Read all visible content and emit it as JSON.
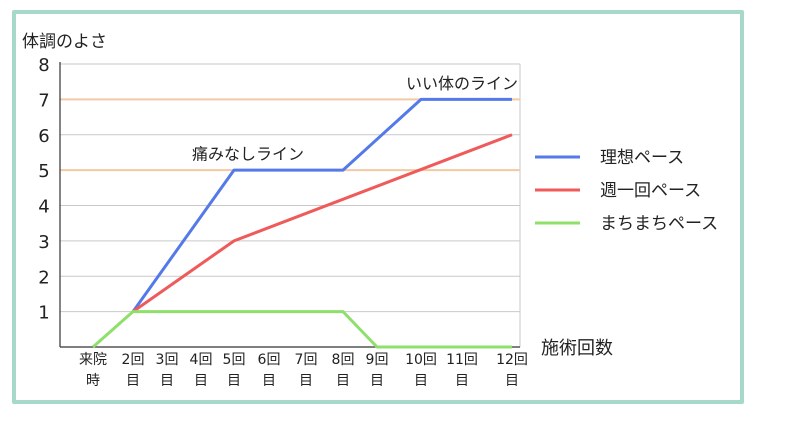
{
  "chart_data": {
    "type": "line",
    "ylabel": "体調のよさ",
    "xlabel": "施術回数",
    "ylim": [
      0,
      8
    ],
    "yticks": [
      "1",
      "2",
      "3",
      "4",
      "5",
      "6",
      "7",
      "8"
    ],
    "categories": [
      [
        "来院",
        "時"
      ],
      [
        "2回",
        "目"
      ],
      [
        "3回",
        "目"
      ],
      [
        "4回",
        "目"
      ],
      [
        "5回",
        "目"
      ],
      [
        "6回",
        "目"
      ],
      [
        "7回",
        "目"
      ],
      [
        "8回",
        "目"
      ],
      [
        "9回",
        "目"
      ],
      [
        "10回",
        "目"
      ],
      [
        "11回",
        "目"
      ],
      [
        "12回",
        "目"
      ]
    ],
    "series": [
      {
        "name": "理想ペース",
        "color": "#5479e8",
        "values": [
          null,
          1,
          null,
          null,
          5,
          null,
          null,
          5,
          null,
          7,
          null,
          7
        ]
      },
      {
        "name": "週一回ペース",
        "color": "#ef5a5a",
        "values": [
          null,
          1,
          null,
          null,
          3,
          null,
          null,
          null,
          null,
          null,
          null,
          6
        ]
      },
      {
        "name": "まちまちペース",
        "color": "#8ee06a",
        "values": [
          0,
          1,
          1,
          1,
          1,
          1,
          1,
          1,
          0,
          0,
          0,
          0
        ]
      }
    ],
    "annotations": [
      {
        "text": "痛みなしライン",
        "x_index": 4.4,
        "y": 5.3
      },
      {
        "text": "いい体のライン",
        "x_index": 10,
        "y": 7.3
      }
    ],
    "highlight_lines": [
      {
        "y": 5,
        "color": "#f3c9a4"
      },
      {
        "y": 7,
        "color": "#f3c9a4"
      }
    ],
    "grid": true,
    "legend_position": "right"
  }
}
